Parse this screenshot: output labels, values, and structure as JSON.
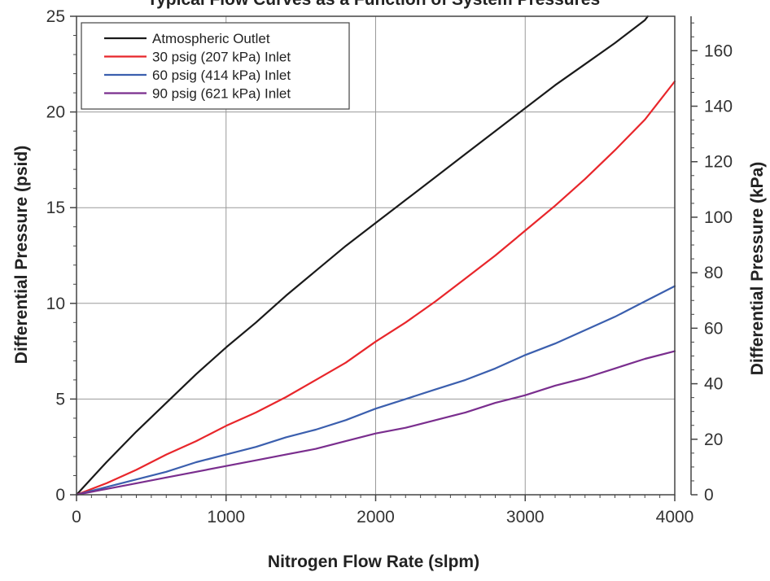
{
  "chart_data": {
    "type": "line",
    "title": "Typical Flow Curves as a Function of System Pressures",
    "xlabel": "Nitrogen Flow Rate (slpm)",
    "ylabel": "Differential Pressure (psid)",
    "y2label": "Differential Pressure (kPa)",
    "xlim": [
      0,
      4000
    ],
    "ylim": [
      0,
      25
    ],
    "y2lim": [
      0,
      172.4
    ],
    "x_ticks": [
      0,
      1000,
      2000,
      3000,
      4000
    ],
    "y_ticks": [
      0,
      5,
      10,
      15,
      20,
      25
    ],
    "y2_ticks": [
      0,
      20,
      40,
      60,
      80,
      100,
      120,
      140,
      160
    ],
    "grid": true,
    "legend_position": "top-left",
    "series": [
      {
        "name": "Atmospheric Outlet",
        "color": "#1a1a1a",
        "x": [
          0,
          200,
          400,
          600,
          800,
          1000,
          1200,
          1400,
          1600,
          1800,
          2000,
          2200,
          2400,
          2600,
          2800,
          3000,
          3200,
          3400,
          3600,
          3800,
          3820
        ],
        "y": [
          0,
          1.7,
          3.3,
          4.8,
          6.3,
          7.7,
          9.0,
          10.4,
          11.7,
          13.0,
          14.2,
          15.4,
          16.6,
          17.8,
          19.0,
          20.2,
          21.4,
          22.5,
          23.6,
          24.8,
          25.0
        ]
      },
      {
        "name": "30 psig (207 kPa) Inlet",
        "color": "#e8262b",
        "x": [
          0,
          200,
          400,
          600,
          800,
          1000,
          1200,
          1400,
          1600,
          1800,
          2000,
          2200,
          2400,
          2600,
          2800,
          3000,
          3200,
          3400,
          3600,
          3800,
          4000
        ],
        "y": [
          0,
          0.6,
          1.3,
          2.1,
          2.8,
          3.6,
          4.3,
          5.1,
          6.0,
          6.9,
          8.0,
          9.0,
          10.1,
          11.3,
          12.5,
          13.8,
          15.1,
          16.5,
          18.0,
          19.6,
          21.6
        ]
      },
      {
        "name": "60 psig (414 kPa) Inlet",
        "color": "#3b5fae",
        "x": [
          0,
          200,
          400,
          600,
          800,
          1000,
          1200,
          1400,
          1600,
          1800,
          2000,
          2200,
          2400,
          2600,
          2800,
          3000,
          3200,
          3400,
          3600,
          3800,
          4000
        ],
        "y": [
          0,
          0.4,
          0.8,
          1.2,
          1.7,
          2.1,
          2.5,
          3.0,
          3.4,
          3.9,
          4.5,
          5.0,
          5.5,
          6.0,
          6.6,
          7.3,
          7.9,
          8.6,
          9.3,
          10.1,
          10.9
        ]
      },
      {
        "name": "90 psig (621 kPa) Inlet",
        "color": "#7a2e8e",
        "x": [
          0,
          200,
          400,
          600,
          800,
          1000,
          1200,
          1400,
          1600,
          1800,
          2000,
          2200,
          2400,
          2600,
          2800,
          3000,
          3200,
          3400,
          3600,
          3800,
          4000
        ],
        "y": [
          0,
          0.3,
          0.6,
          0.9,
          1.2,
          1.5,
          1.8,
          2.1,
          2.4,
          2.8,
          3.2,
          3.5,
          3.9,
          4.3,
          4.8,
          5.2,
          5.7,
          6.1,
          6.6,
          7.1,
          7.5
        ]
      }
    ]
  }
}
